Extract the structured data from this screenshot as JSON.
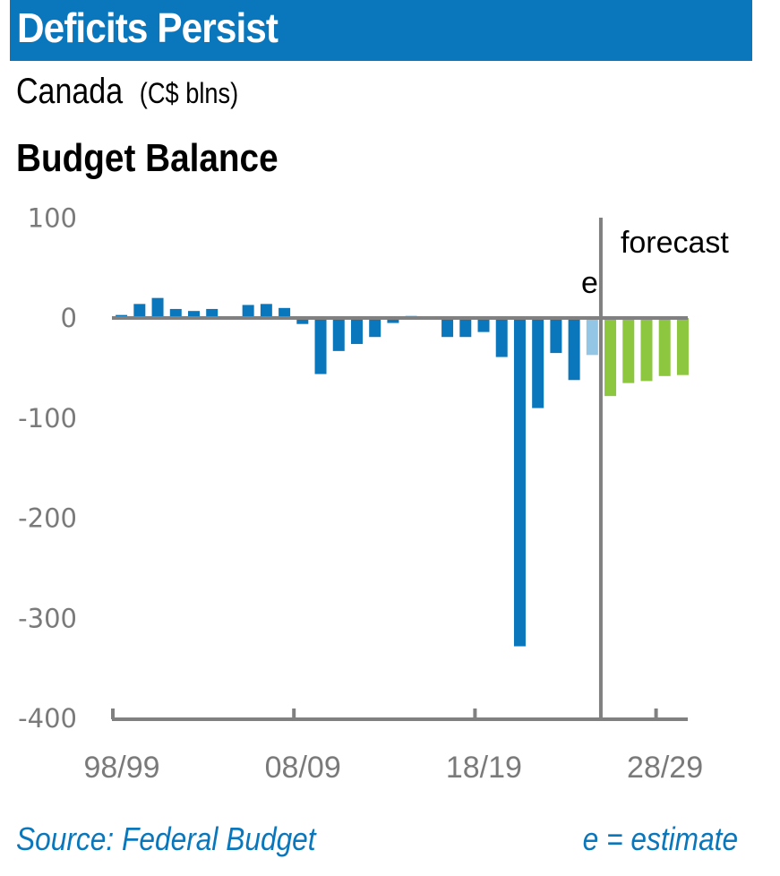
{
  "header": {
    "title": "Deficits Persist",
    "subtitle": "Canada",
    "units": "(C$ blns)"
  },
  "footer": {
    "source": "Source: Federal Budget",
    "note": "e = estimate"
  },
  "colors": {
    "title_bar": "#0A77BC",
    "actual": "#0A77BC",
    "estimate": "#93C6E4",
    "forecast": "#8DC63F",
    "axis": "#808080"
  },
  "chart_data": {
    "type": "bar",
    "title": "Budget Balance",
    "xlabel": "",
    "ylabel": "C$ blns",
    "ylim": [
      -400,
      100
    ],
    "yticks": [
      100,
      0,
      -100,
      -200,
      -300,
      -400
    ],
    "grid": false,
    "legend": "none",
    "xtick_labels": [
      "98/99",
      "08/09",
      "18/19",
      "28/29"
    ],
    "annotations": {
      "estimate_marker": "e",
      "forecast_label": "forecast"
    },
    "forecast_start": "25/26",
    "categories": [
      "98/99",
      "99/00",
      "00/01",
      "01/02",
      "02/03",
      "03/04",
      "04/05",
      "05/06",
      "06/07",
      "07/08",
      "08/09",
      "09/10",
      "10/11",
      "11/12",
      "12/13",
      "13/14",
      "14/15",
      "15/16",
      "16/17",
      "17/18",
      "18/19",
      "19/20",
      "20/21",
      "21/22",
      "22/23",
      "23/24",
      "24/25",
      "25/26",
      "26/27",
      "27/28",
      "28/29",
      "29/30"
    ],
    "values": [
      3,
      14,
      20,
      9,
      7,
      9,
      1,
      13,
      14,
      10,
      -6,
      -56,
      -33,
      -26,
      -19,
      -5,
      2,
      -1,
      -19,
      -19,
      -14,
      -39,
      -328,
      -90,
      -35,
      -62,
      -37,
      -78,
      -65,
      -63,
      -58,
      -57
    ],
    "kinds": [
      "actual",
      "actual",
      "actual",
      "actual",
      "actual",
      "actual",
      "actual",
      "actual",
      "actual",
      "actual",
      "actual",
      "actual",
      "actual",
      "actual",
      "actual",
      "actual",
      "actual",
      "actual",
      "actual",
      "actual",
      "actual",
      "actual",
      "actual",
      "actual",
      "actual",
      "actual",
      "estimate",
      "forecast",
      "forecast",
      "forecast",
      "forecast",
      "forecast"
    ]
  }
}
